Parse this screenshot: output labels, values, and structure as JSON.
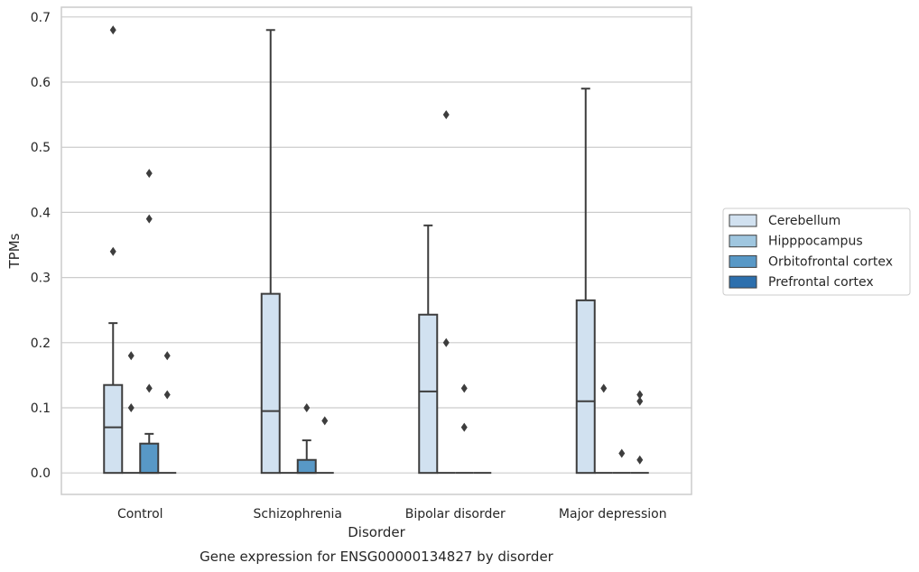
{
  "chart_data": {
    "type": "box",
    "xlabel": "Disorder",
    "ylabel": "TPMs",
    "caption": "Gene expression for ENSG00000134827 by disorder",
    "ylim": [
      -0.033,
      0.715
    ],
    "yticks": [
      "0.0",
      "0.1",
      "0.2",
      "0.3",
      "0.4",
      "0.5",
      "0.6",
      "0.7"
    ],
    "categories": [
      "Control",
      "Schizophrenia",
      "Bipolar disorder",
      "Major depression"
    ],
    "legend_placement": "right",
    "grid": true,
    "series": [
      {
        "name": "Cerebellum",
        "color": "#d1e1f0",
        "boxes": [
          {
            "q1": 0.0,
            "median": 0.07,
            "q3": 0.135,
            "whislo": 0.0,
            "whishi": 0.23,
            "fliers": [
              0.68,
              0.34
            ]
          },
          {
            "q1": 0.0,
            "median": 0.095,
            "q3": 0.275,
            "whislo": 0.0,
            "whishi": 0.68,
            "fliers": []
          },
          {
            "q1": 0.0,
            "median": 0.125,
            "q3": 0.243,
            "whislo": 0.0,
            "whishi": 0.38,
            "fliers": []
          },
          {
            "q1": 0.0,
            "median": 0.11,
            "q3": 0.265,
            "whislo": 0.0,
            "whishi": 0.59,
            "fliers": []
          }
        ]
      },
      {
        "name": "Hipppocampus",
        "color": "#9fc6df",
        "boxes": [
          {
            "q1": 0.0,
            "median": 0.0,
            "q3": 0.0,
            "whislo": 0.0,
            "whishi": 0.0,
            "fliers": [
              0.18,
              0.1
            ]
          },
          {
            "q1": 0.0,
            "median": 0.0,
            "q3": 0.0,
            "whislo": 0.0,
            "whishi": 0.0,
            "fliers": []
          },
          {
            "q1": 0.0,
            "median": 0.0,
            "q3": 0.0,
            "whislo": 0.0,
            "whishi": 0.0,
            "fliers": [
              0.55,
              0.2
            ]
          },
          {
            "q1": 0.0,
            "median": 0.0,
            "q3": 0.0,
            "whislo": 0.0,
            "whishi": 0.0,
            "fliers": [
              0.13
            ]
          }
        ]
      },
      {
        "name": "Orbitofrontal cortex",
        "color": "#5898c6",
        "boxes": [
          {
            "q1": 0.0,
            "median": 0.0,
            "q3": 0.045,
            "whislo": 0.0,
            "whishi": 0.06,
            "fliers": [
              0.46,
              0.39,
              0.13
            ]
          },
          {
            "q1": 0.0,
            "median": 0.0,
            "q3": 0.02,
            "whislo": 0.0,
            "whishi": 0.05,
            "fliers": [
              0.1
            ]
          },
          {
            "q1": 0.0,
            "median": 0.0,
            "q3": 0.0,
            "whislo": 0.0,
            "whishi": 0.0,
            "fliers": [
              0.13,
              0.07
            ]
          },
          {
            "q1": 0.0,
            "median": 0.0,
            "q3": 0.0,
            "whislo": 0.0,
            "whishi": 0.0,
            "fliers": [
              0.03
            ]
          }
        ]
      },
      {
        "name": "Prefrontal cortex",
        "color": "#2c6fad",
        "boxes": [
          {
            "q1": 0.0,
            "median": 0.0,
            "q3": 0.0,
            "whislo": 0.0,
            "whishi": 0.0,
            "fliers": [
              0.18,
              0.12
            ]
          },
          {
            "q1": 0.0,
            "median": 0.0,
            "q3": 0.0,
            "whislo": 0.0,
            "whishi": 0.0,
            "fliers": [
              0.08
            ]
          },
          {
            "q1": 0.0,
            "median": 0.0,
            "q3": 0.0,
            "whislo": 0.0,
            "whishi": 0.0,
            "fliers": []
          },
          {
            "q1": 0.0,
            "median": 0.0,
            "q3": 0.0,
            "whislo": 0.0,
            "whishi": 0.0,
            "fliers": [
              0.12,
              0.11,
              0.02
            ]
          }
        ]
      }
    ]
  }
}
